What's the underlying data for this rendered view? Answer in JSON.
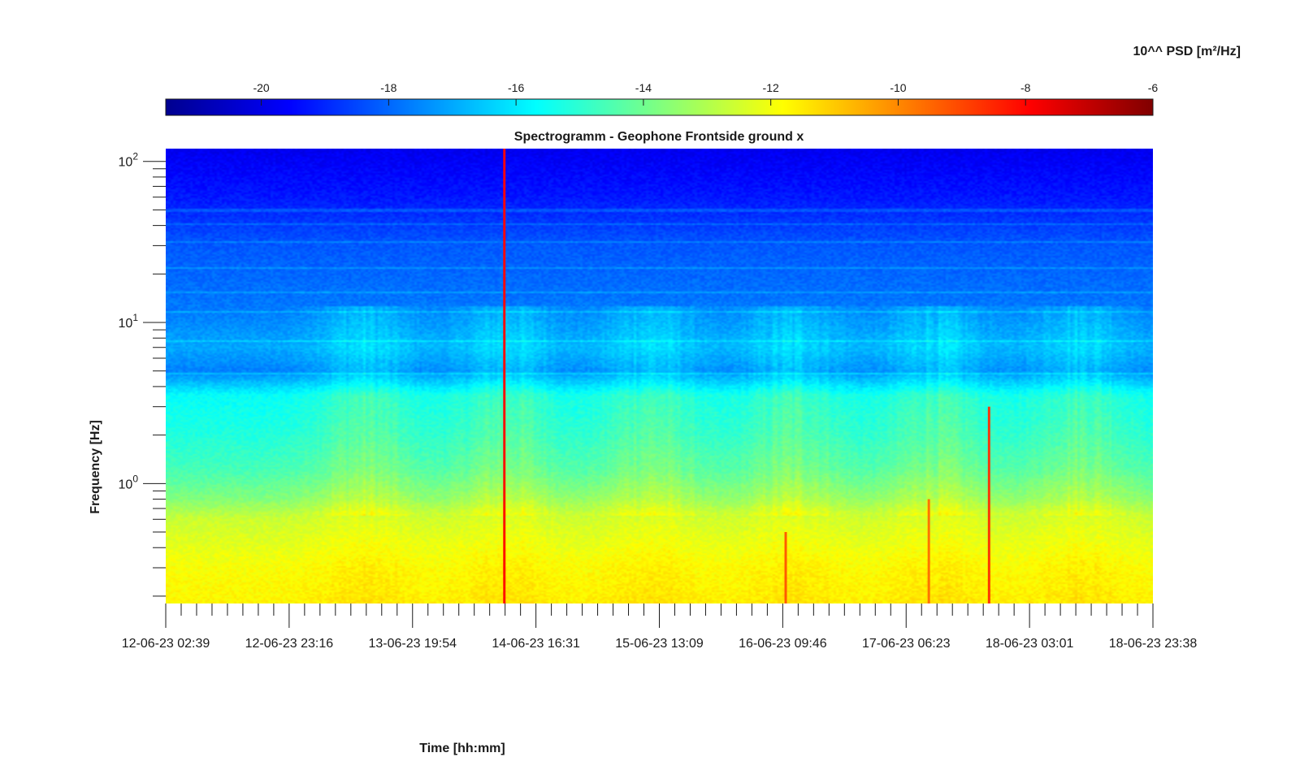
{
  "chart_data": {
    "type": "heatmap",
    "title": "Spectrogramm - Geophone Frontside ground x",
    "xlabel": "Time [hh:mm]",
    "ylabel": "Frequency [Hz]",
    "yscale": "log",
    "ylim": [
      0.18,
      120
    ],
    "y_ticks": [
      {
        "value": 1,
        "base": "10",
        "exp": "0"
      },
      {
        "value": 10,
        "base": "10",
        "exp": "1"
      },
      {
        "value": 100,
        "base": "10",
        "exp": "2"
      }
    ],
    "x_tick_labels": [
      "12-06-23 02:39",
      "12-06-23 23:16",
      "13-06-23 19:54",
      "14-06-23 16:31",
      "15-06-23 13:09",
      "16-06-23 09:46",
      "17-06-23 06:23",
      "18-06-23 03:01",
      "18-06-23 23:38"
    ],
    "x_range": [
      "12-06-23 02:39",
      "18-06-23 23:38"
    ],
    "minor_ticks_per_major": 8,
    "colorbar": {
      "label": "10^^ PSD [m²/Hz]",
      "ticks": [
        -20,
        -18,
        -16,
        -14,
        -12,
        -10,
        -8,
        -6
      ],
      "range": [
        -21.5,
        -6
      ],
      "colormap": "jet",
      "location": "top"
    },
    "psd_profile_by_frequency": [
      {
        "f_hz": 0.18,
        "log10_psd": -11.7
      },
      {
        "f_hz": 0.3,
        "log10_psd": -11.9
      },
      {
        "f_hz": 0.6,
        "log10_psd": -12.6
      },
      {
        "f_hz": 0.8,
        "log10_psd": -13.7
      },
      {
        "f_hz": 1.2,
        "log10_psd": -14.6
      },
      {
        "f_hz": 2.0,
        "log10_psd": -15.2
      },
      {
        "f_hz": 3.5,
        "log10_psd": -15.6
      },
      {
        "f_hz": 5.0,
        "log10_psd": -17.6
      },
      {
        "f_hz": 7.0,
        "log10_psd": -17.0
      },
      {
        "f_hz": 12.0,
        "log10_psd": -17.7
      },
      {
        "f_hz": 30.0,
        "log10_psd": -18.2
      },
      {
        "f_hz": 60.0,
        "log10_psd": -19.2
      },
      {
        "f_hz": 120.0,
        "log10_psd": -19.8
      }
    ],
    "transient_events": [
      {
        "time_fraction": 0.343,
        "f_max_hz": 120,
        "peak_log10_psd": -8.0
      },
      {
        "time_fraction": 0.628,
        "f_max_hz": 0.5,
        "peak_log10_psd": -9.2
      },
      {
        "time_fraction": 0.773,
        "f_max_hz": 0.8,
        "peak_log10_psd": -9.6
      },
      {
        "time_fraction": 0.834,
        "f_max_hz": 3.0,
        "peak_log10_psd": -8.6
      }
    ],
    "tonal_lines_hz": [
      4.8,
      7.6,
      11.7,
      15.5,
      22,
      32,
      41,
      50
    ]
  }
}
